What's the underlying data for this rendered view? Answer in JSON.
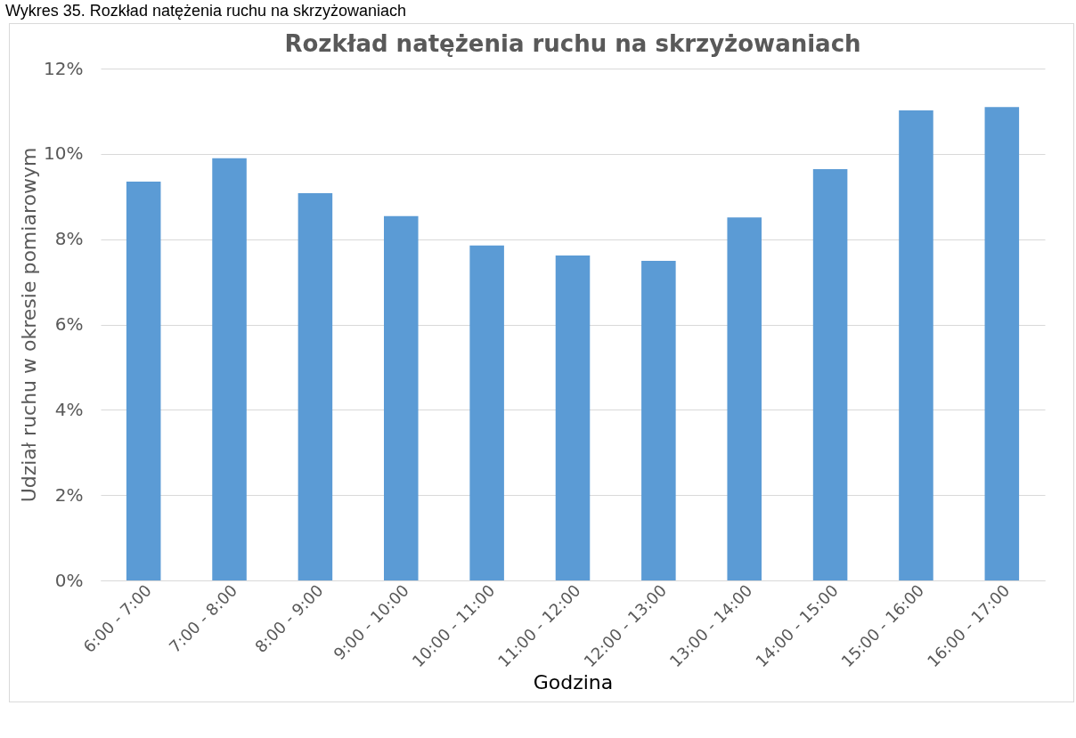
{
  "chart_data": {
    "type": "bar",
    "title": "Rozkład natężenia ruchu na skrzyżowaniach",
    "xlabel": "Godzina",
    "ylabel": "Udział ruchu w okresie pomiarowym",
    "annotations": [
      "Wykres 35. Rozkład natężenia ruchu na skrzyżowaniach"
    ],
    "categories": [
      "6:00 - 7:00",
      "7:00 - 8:00",
      "8:00 - 9:00",
      "9:00 - 10:00",
      "10:00 - 11:00",
      "11:00 - 12:00",
      "12:00 - 13:00",
      "13:00 - 14:00",
      "14:00 - 15:00",
      "15:00 - 16:00",
      "16:00 - 17:00"
    ],
    "values": [
      9.35,
      9.9,
      9.08,
      8.54,
      7.85,
      7.62,
      7.49,
      8.51,
      9.64,
      11.02,
      11.1
    ],
    "color": "#5b9bd5",
    "ylim": [
      0,
      12
    ],
    "yticks": [
      {
        "value": 0,
        "label": "0%"
      },
      {
        "value": 2,
        "label": "2%"
      },
      {
        "value": 4,
        "label": "4%"
      },
      {
        "value": 6,
        "label": "6%"
      },
      {
        "value": 8,
        "label": "8%"
      },
      {
        "value": 10,
        "label": "10%"
      },
      {
        "value": 12,
        "label": "12%"
      }
    ],
    "grid": "y"
  }
}
